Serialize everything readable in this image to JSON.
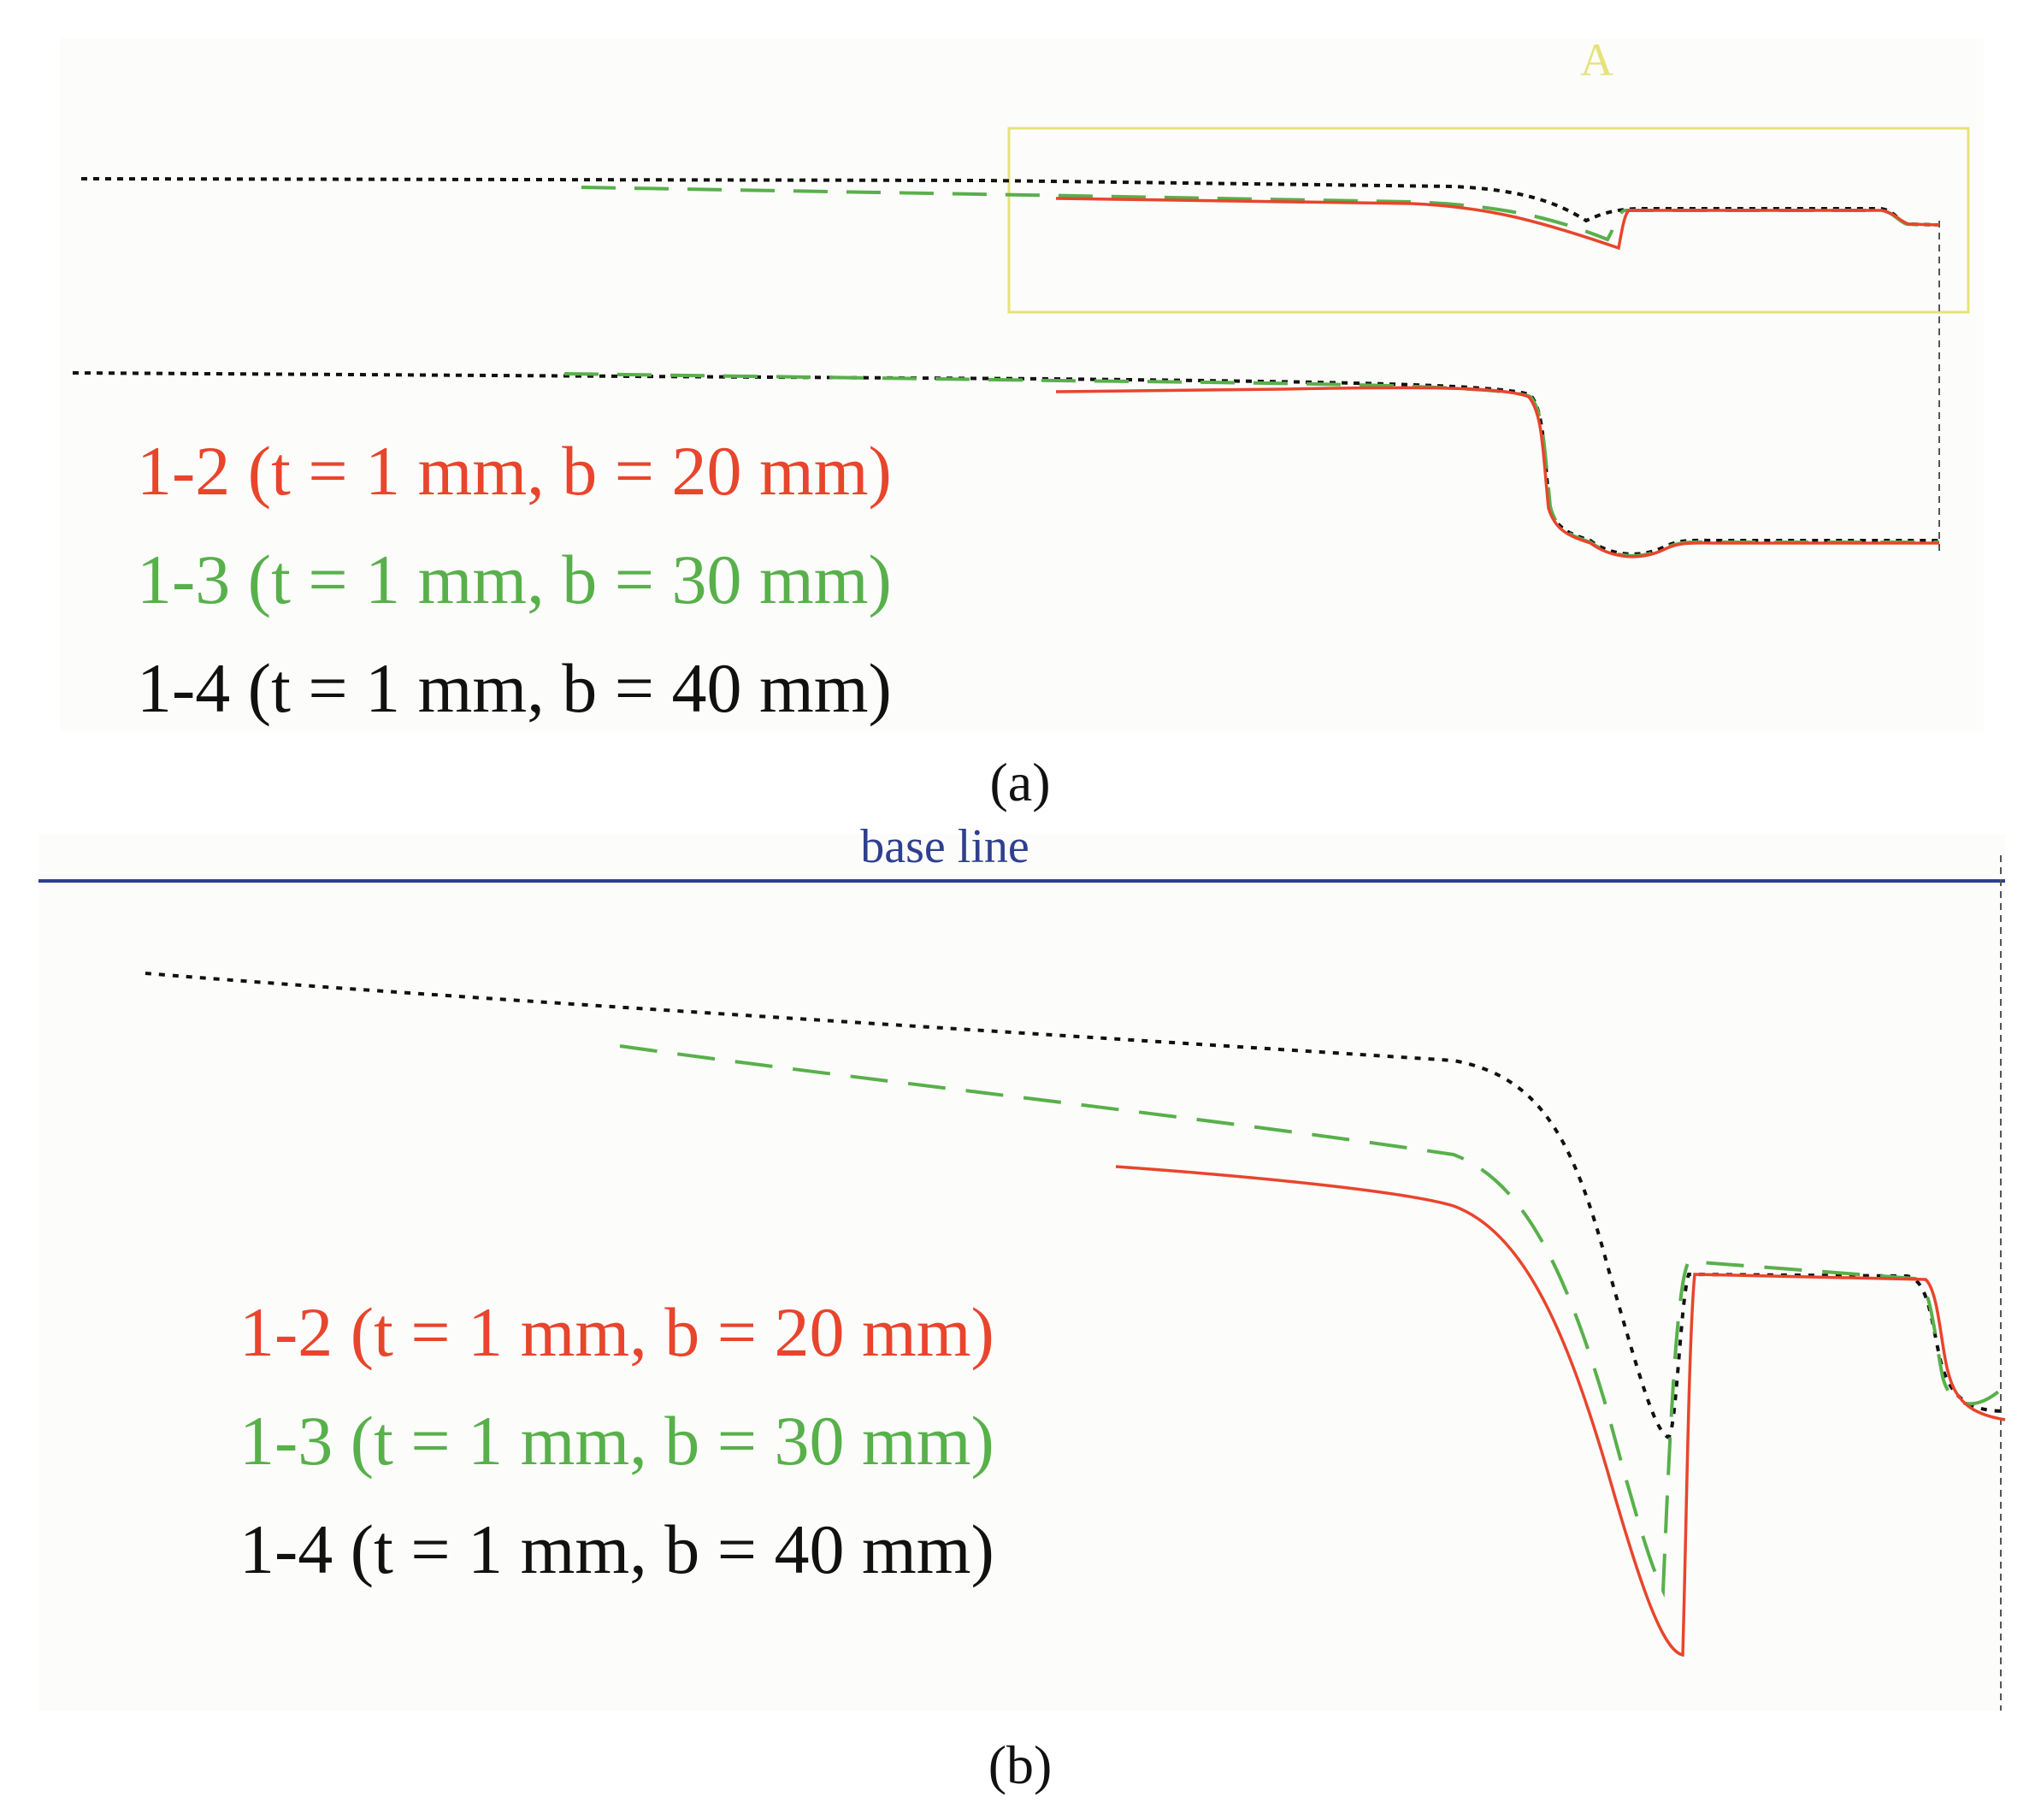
{
  "colors": {
    "red": "#e8452c",
    "green": "#58b04a",
    "black": "#111111",
    "baseline": "#2f3f8f",
    "zoom_box": "#e6e27a",
    "caption": "#111111"
  },
  "panel_a": {
    "caption": "(a)",
    "zoom_box_label": "A",
    "legend": [
      {
        "key": "red",
        "text": "1-2 (t = 1 mm, b = 20 mm)"
      },
      {
        "key": "green",
        "text": "1-3 (t = 1 mm, b = 30 mm)"
      },
      {
        "key": "black",
        "text": "1-4 (t = 1 mm, b = 40 mm)"
      }
    ]
  },
  "panel_b": {
    "caption": "(b)",
    "baseline_label": "base line",
    "legend": [
      {
        "key": "red",
        "text": "1-2 (t = 1 mm, b = 20 mm)"
      },
      {
        "key": "green",
        "text": "1-3 (t = 1 mm, b = 30 mm)"
      },
      {
        "key": "black",
        "text": "1-4 (t = 1 mm, b = 40 mm)"
      }
    ]
  },
  "line_styles": [
    {
      "key": "red",
      "style": "solid"
    },
    {
      "key": "green",
      "style": "dashed"
    },
    {
      "key": "black",
      "style": "dotted"
    }
  ]
}
